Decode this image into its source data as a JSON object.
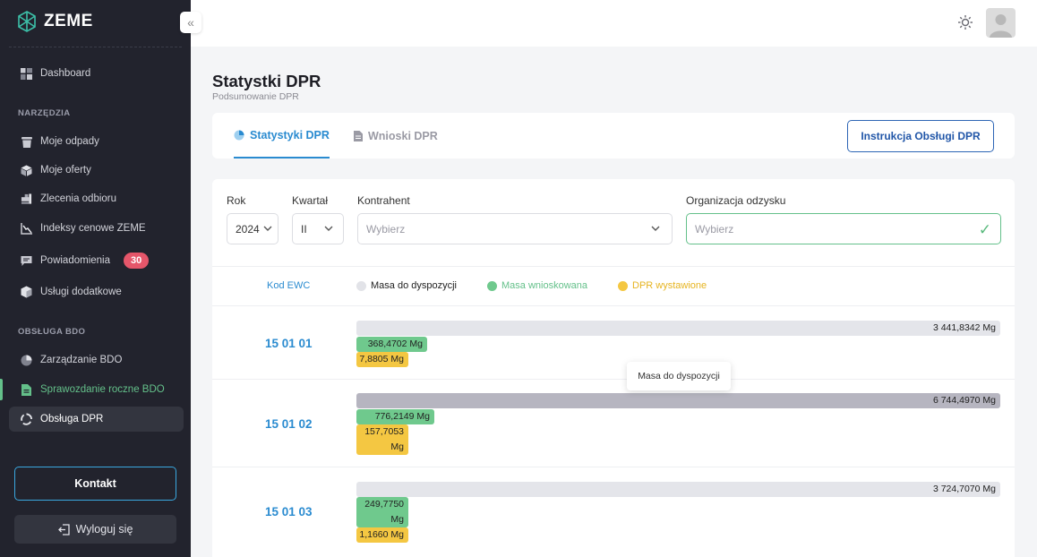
{
  "app": {
    "name": "ZEME"
  },
  "sidebar": {
    "items": [
      {
        "label": "Dashboard",
        "icon": "dashboard-icon"
      },
      {
        "label": "Moje odpady",
        "icon": "bin-icon"
      },
      {
        "label": "Moje oferty",
        "icon": "cube-icon"
      },
      {
        "label": "Zlecenia odbioru",
        "icon": "truck-icon"
      },
      {
        "label": "Indeksy cenowe ZEME",
        "icon": "chart-line-icon"
      },
      {
        "label": "Powiadomienia",
        "icon": "message-icon",
        "badge": "30"
      },
      {
        "label": "Usługi dodatkowe",
        "icon": "box-icon"
      },
      {
        "label": "Zarządzanie BDO",
        "icon": "pie-icon"
      },
      {
        "label": "Sprawozdanie roczne BDO",
        "icon": "document-icon"
      },
      {
        "label": "Obsługa DPR",
        "icon": "recycle-icon"
      }
    ],
    "sections": {
      "tools": "NARZĘDZIA",
      "bdo": "OBSŁUGA BDO"
    },
    "contact_label": "Kontakt",
    "logout_label": "Wyloguj się"
  },
  "page": {
    "title": "Statystki DPR",
    "subtitle": "Podsumowanie DPR"
  },
  "tabs": [
    {
      "label": "Statystyki DPR"
    },
    {
      "label": "Wnioski DPR"
    }
  ],
  "instruction_button": "Instrukcja Obsługi DPR",
  "filters": {
    "year": {
      "label": "Rok",
      "value": "2024"
    },
    "quarter": {
      "label": "Kwartał",
      "value": "II"
    },
    "contractor": {
      "label": "Kontrahent",
      "placeholder": "Wybierz"
    },
    "organization": {
      "label": "Organizacja odzysku",
      "placeholder": "Wybierz"
    }
  },
  "table": {
    "code_header": "Kod EWC",
    "legend": [
      {
        "label": "Masa do dyspozycji",
        "color": "#e2e3e8"
      },
      {
        "label": "Masa wnioskowana",
        "color": "#6fc98d"
      },
      {
        "label": "DPR wystawione",
        "color": "#f4c742"
      }
    ],
    "rows": [
      {
        "code": "15 01 01",
        "available": "3 441,8342 Mg",
        "requested": "368,4702 Mg",
        "issued": "7,8805 Mg"
      },
      {
        "code": "15 01 02",
        "available": "6 744,4970 Mg",
        "requested": "776,2149 Mg",
        "issued_line1": "157,7053",
        "issued_line2": "Mg"
      },
      {
        "code": "15 01 03",
        "available": "3 724,7070 Mg",
        "requested_line1": "249,7750",
        "requested_line2": "Mg",
        "issued": "1,1660 Mg"
      }
    ],
    "tooltip": "Masa do dyspozycji"
  }
}
